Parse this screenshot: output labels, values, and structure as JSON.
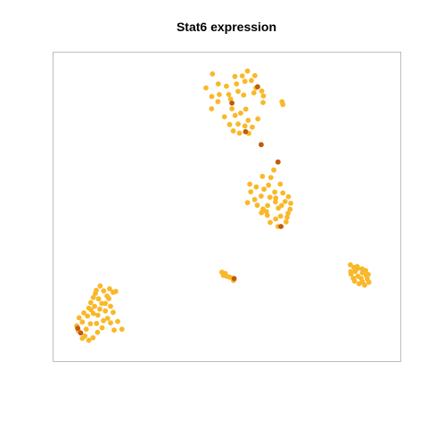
{
  "chart_data": {
    "type": "scatter",
    "title": "Stat6 expression",
    "xlabel": "",
    "ylabel": "",
    "xlim": [
      0,
      100
    ],
    "ylim": [
      0,
      100
    ],
    "grid": false,
    "legend": "none",
    "colors": {
      "low": "#F9B82A",
      "high": "#C25A0C",
      "frame": "#BDBDBD"
    },
    "series": [
      {
        "values": [
          {
            "x": 45.4,
            "y": 96.3
          },
          {
            "x": 47.2,
            "y": 92.8
          },
          {
            "x": 43.4,
            "y": 91.4
          },
          {
            "x": 49.7,
            "y": 92.0
          },
          {
            "x": 52.3,
            "y": 95.4
          },
          {
            "x": 54.6,
            "y": 95.6
          },
          {
            "x": 55.4,
            "y": 93.7
          },
          {
            "x": 57.4,
            "y": 94.0
          },
          {
            "x": 58.5,
            "y": 95.7
          },
          {
            "x": 56.2,
            "y": 97.3
          },
          {
            "x": 53.3,
            "y": 90.2
          },
          {
            "x": 50.4,
            "y": 89.1
          },
          {
            "x": 47.5,
            "y": 89.1
          },
          {
            "x": 45.2,
            "y": 88.4
          },
          {
            "x": 47.1,
            "y": 86.6
          },
          {
            "x": 51.0,
            "y": 87.5
          },
          {
            "x": 55.0,
            "y": 88.9
          },
          {
            "x": 58.2,
            "y": 89.7
          },
          {
            "x": 60.6,
            "y": 90.3
          },
          {
            "x": 61.1,
            "y": 88.6
          },
          {
            "x": 66.8,
            "y": 86.6
          },
          {
            "x": 67.1,
            "y": 85.6
          },
          {
            "x": 51.4,
            "y": 84.1
          },
          {
            "x": 52.4,
            "y": 81.8
          },
          {
            "x": 54.1,
            "y": 82.6
          },
          {
            "x": 55.7,
            "y": 84.0
          },
          {
            "x": 56.4,
            "y": 80.1
          },
          {
            "x": 53.3,
            "y": 78.8
          },
          {
            "x": 50.7,
            "y": 78.6
          },
          {
            "x": 51.8,
            "y": 76.4
          },
          {
            "x": 53.7,
            "y": 75.6
          },
          {
            "x": 55.4,
            "y": 78.1
          },
          {
            "x": 57.7,
            "y": 77.7
          },
          {
            "x": 56.6,
            "y": 75.5
          },
          {
            "x": 49.1,
            "y": 81.3
          },
          {
            "x": 45.1,
            "y": 84.1
          },
          {
            "x": 59.4,
            "y": 80.6
          },
          {
            "x": 52.8,
            "y": 92.8
          },
          {
            "x": 58.8,
            "y": 91.4
          },
          {
            "x": 61.0,
            "y": 86.3
          },
          {
            "x": 64.3,
            "y": 62.7
          },
          {
            "x": 60.8,
            "y": 60.5
          },
          {
            "x": 62.7,
            "y": 57.4
          },
          {
            "x": 63.4,
            "y": 60.1
          },
          {
            "x": 61.3,
            "y": 56.0
          },
          {
            "x": 64.6,
            "y": 55.0
          },
          {
            "x": 66.3,
            "y": 57.8
          },
          {
            "x": 67.1,
            "y": 54.7
          },
          {
            "x": 63.1,
            "y": 53.2
          },
          {
            "x": 60.4,
            "y": 53.6
          },
          {
            "x": 58.9,
            "y": 56.8
          },
          {
            "x": 56.9,
            "y": 57.8
          },
          {
            "x": 57.2,
            "y": 55.1
          },
          {
            "x": 58.4,
            "y": 52.4
          },
          {
            "x": 56.2,
            "y": 51.3
          },
          {
            "x": 59.2,
            "y": 50.4
          },
          {
            "x": 61.0,
            "y": 49.1
          },
          {
            "x": 62.4,
            "y": 50.3
          },
          {
            "x": 64.8,
            "y": 51.6
          },
          {
            "x": 65.7,
            "y": 49.4
          },
          {
            "x": 66.7,
            "y": 50.3
          },
          {
            "x": 67.8,
            "y": 51.7
          },
          {
            "x": 68.8,
            "y": 53.4
          },
          {
            "x": 69.5,
            "y": 51.1
          },
          {
            "x": 69.3,
            "y": 49.0
          },
          {
            "x": 68.7,
            "y": 47.6
          },
          {
            "x": 68.4,
            "y": 46.2
          },
          {
            "x": 68.1,
            "y": 44.6
          },
          {
            "x": 64.9,
            "y": 45.6
          },
          {
            "x": 62.3,
            "y": 46.9
          },
          {
            "x": 63.2,
            "y": 44.4
          },
          {
            "x": 62.0,
            "y": 48.2
          },
          {
            "x": 60.5,
            "y": 47.8
          },
          {
            "x": 66.4,
            "y": 46.6
          },
          {
            "x": 65.6,
            "y": 43.0
          },
          {
            "x": 64.9,
            "y": 52.9
          },
          {
            "x": 48.3,
            "y": 27.0
          },
          {
            "x": 49.3,
            "y": 26.6
          },
          {
            "x": 49.8,
            "y": 25.6
          },
          {
            "x": 50.7,
            "y": 25.3
          },
          {
            "x": 51.7,
            "y": 24.9
          },
          {
            "x": 51.9,
            "y": 24.1
          },
          {
            "x": 48.8,
            "y": 25.9
          },
          {
            "x": 87.9,
            "y": 29.6
          },
          {
            "x": 89.0,
            "y": 28.7
          },
          {
            "x": 90.2,
            "y": 28.4
          },
          {
            "x": 91.5,
            "y": 28.2
          },
          {
            "x": 92.6,
            "y": 27.6
          },
          {
            "x": 89.4,
            "y": 27.3
          },
          {
            "x": 88.1,
            "y": 26.4
          },
          {
            "x": 91.6,
            "y": 26.8
          },
          {
            "x": 88.8,
            "y": 24.9
          },
          {
            "x": 90.2,
            "y": 25.6
          },
          {
            "x": 91.2,
            "y": 24.9
          },
          {
            "x": 92.8,
            "y": 25.9
          },
          {
            "x": 93.4,
            "y": 26.2
          },
          {
            "x": 93.1,
            "y": 24.6
          },
          {
            "x": 89.2,
            "y": 23.9
          },
          {
            "x": 90.6,
            "y": 23.0
          },
          {
            "x": 91.6,
            "y": 23.6
          },
          {
            "x": 92.3,
            "y": 22.5
          },
          {
            "x": 93.6,
            "y": 23.5
          },
          {
            "x": 88.0,
            "y": 27.2
          },
          {
            "x": 90.0,
            "y": 29.0
          },
          {
            "x": 10.8,
            "y": 22.2
          },
          {
            "x": 9.6,
            "y": 20.7
          },
          {
            "x": 11.9,
            "y": 20.5
          },
          {
            "x": 13.7,
            "y": 21.2
          },
          {
            "x": 14.8,
            "y": 20.0
          },
          {
            "x": 15.6,
            "y": 20.3
          },
          {
            "x": 9.3,
            "y": 19.6
          },
          {
            "x": 8.7,
            "y": 18.2
          },
          {
            "x": 7.9,
            "y": 16.4
          },
          {
            "x": 10.3,
            "y": 17.7
          },
          {
            "x": 11.3,
            "y": 16.1
          },
          {
            "x": 9.1,
            "y": 15.1
          },
          {
            "x": 7.3,
            "y": 14.5
          },
          {
            "x": 5.8,
            "y": 12.8
          },
          {
            "x": 6.9,
            "y": 11.7
          },
          {
            "x": 8.0,
            "y": 13.9
          },
          {
            "x": 8.7,
            "y": 12.6
          },
          {
            "x": 10.1,
            "y": 12.0
          },
          {
            "x": 10.7,
            "y": 14.1
          },
          {
            "x": 12.4,
            "y": 13.5
          },
          {
            "x": 12.4,
            "y": 16.1
          },
          {
            "x": 13.5,
            "y": 17.8
          },
          {
            "x": 14.0,
            "y": 15.1
          },
          {
            "x": 12.9,
            "y": 18.7
          },
          {
            "x": 14.8,
            "y": 13.0
          },
          {
            "x": 13.1,
            "y": 10.9
          },
          {
            "x": 14.0,
            "y": 9.3
          },
          {
            "x": 15.1,
            "y": 6.8
          },
          {
            "x": 17.5,
            "y": 7.1
          },
          {
            "x": 16.2,
            "y": 9.8
          },
          {
            "x": 11.4,
            "y": 7.6
          },
          {
            "x": 11.8,
            "y": 10.1
          },
          {
            "x": 9.7,
            "y": 9.1
          },
          {
            "x": 7.8,
            "y": 9.0
          },
          {
            "x": 6.5,
            "y": 7.1
          },
          {
            "x": 5.3,
            "y": 9.6
          },
          {
            "x": 3.6,
            "y": 8.3
          },
          {
            "x": 4.1,
            "y": 6.5
          },
          {
            "x": 4.3,
            "y": 11.1
          },
          {
            "x": 6.1,
            "y": 4.7
          },
          {
            "x": 7.3,
            "y": 3.2
          },
          {
            "x": 5.3,
            "y": 3.9
          },
          {
            "x": 8.6,
            "y": 4.1
          },
          {
            "x": 10.0,
            "y": 6.0
          }
        ]
      },
      {
        "values": [
          {
            "x": 51.4,
            "y": 86.1
          },
          {
            "x": 59.3,
            "y": 91.8
          },
          {
            "x": 55.6,
            "y": 76.1
          },
          {
            "x": 60.4,
            "y": 71.6
          },
          {
            "x": 65.6,
            "y": 65.5
          },
          {
            "x": 66.5,
            "y": 43.0
          },
          {
            "x": 52.1,
            "y": 24.8
          },
          {
            "x": 4.8,
            "y": 5.8
          },
          {
            "x": 3.9,
            "y": 7.4
          }
        ]
      }
    ]
  }
}
